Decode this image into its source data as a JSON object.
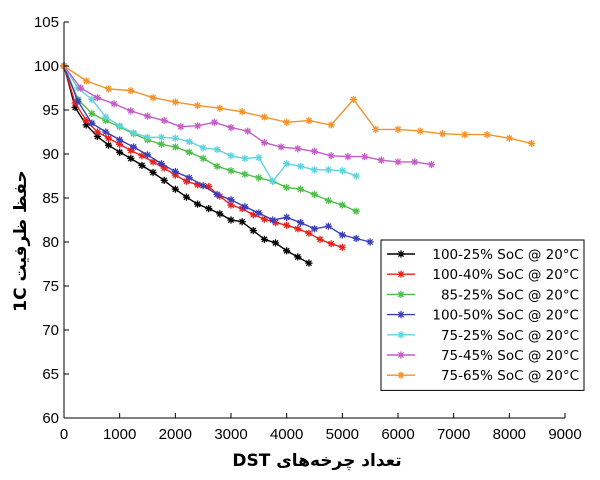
{
  "chart_data": {
    "type": "line",
    "xlabel": "تعداد چرخه‌های DST",
    "ylabel": "حفظ ظرفیت 1C",
    "xlim": [
      0,
      9000
    ],
    "ylim": [
      60,
      105
    ],
    "xticks": [
      0,
      1000,
      2000,
      3000,
      4000,
      5000,
      6000,
      7000,
      8000,
      9000
    ],
    "yticks": [
      60,
      65,
      70,
      75,
      80,
      85,
      90,
      95,
      100,
      105
    ],
    "grid": false,
    "legend_position": "bottom-right",
    "series": [
      {
        "name": "100-25% SoC @ 20°C",
        "color": "#000000",
        "marker": "asterisk",
        "x": [
          0,
          200,
          400,
          600,
          800,
          1000,
          1200,
          1400,
          1600,
          1800,
          2000,
          2200,
          2400,
          2600,
          2800,
          3000,
          3200,
          3400,
          3600,
          3800,
          4000,
          4200,
          4400
        ],
        "y": [
          100,
          95.3,
          93.3,
          92.0,
          91.0,
          90.2,
          89.5,
          88.7,
          87.9,
          87.0,
          86.0,
          85.1,
          84.3,
          83.8,
          83.2,
          82.5,
          82.3,
          81.3,
          80.3,
          79.9,
          79.0,
          78.3,
          77.6
        ]
      },
      {
        "name": "100-40% SoC @ 20°C",
        "color": "#e8231e",
        "marker": "asterisk",
        "x": [
          0,
          200,
          400,
          600,
          800,
          1000,
          1200,
          1400,
          1600,
          1800,
          2000,
          2200,
          2400,
          2600,
          2800,
          3000,
          3200,
          3400,
          3600,
          3800,
          4000,
          4200,
          4400,
          4600,
          4800,
          5000
        ],
        "y": [
          100,
          95.8,
          93.8,
          92.5,
          91.8,
          91.1,
          90.4,
          89.8,
          89.1,
          88.4,
          87.6,
          86.9,
          86.5,
          86.3,
          85.2,
          84.2,
          83.8,
          83.1,
          82.6,
          82.2,
          81.9,
          81.5,
          81.0,
          80.3,
          79.8,
          79.4
        ]
      },
      {
        "name": "85-25% SoC @ 20°C",
        "color": "#4dbf4a",
        "marker": "asterisk",
        "x": [
          0,
          250,
          500,
          750,
          1000,
          1250,
          1500,
          1750,
          2000,
          2250,
          2500,
          2750,
          3000,
          3250,
          3500,
          3750,
          4000,
          4250,
          4500,
          4750,
          5000,
          5250
        ],
        "y": [
          100,
          96.2,
          94.6,
          93.8,
          93.1,
          92.3,
          91.6,
          91.1,
          90.8,
          90.2,
          89.5,
          88.6,
          88.1,
          87.7,
          87.3,
          86.9,
          86.2,
          86.0,
          85.4,
          84.7,
          84.2,
          83.5
        ]
      },
      {
        "name": "100-50% SoC @ 20°C",
        "color": "#3a3fb8",
        "marker": "asterisk",
        "x": [
          0,
          250,
          500,
          750,
          1000,
          1250,
          1500,
          1750,
          2000,
          2250,
          2500,
          2750,
          3000,
          3250,
          3500,
          3750,
          4000,
          4250,
          4500,
          4750,
          5000,
          5250,
          5500
        ],
        "y": [
          100,
          96.0,
          93.5,
          92.5,
          91.6,
          90.8,
          89.9,
          88.9,
          88.0,
          87.3,
          86.4,
          85.4,
          84.8,
          84.0,
          83.3,
          82.5,
          82.8,
          82.2,
          81.5,
          81.8,
          80.8,
          80.4,
          80.0
        ]
      },
      {
        "name": "75-25% SoC @ 20°C",
        "color": "#5fd3e0",
        "marker": "asterisk",
        "x": [
          0,
          250,
          500,
          750,
          1000,
          1250,
          1500,
          1750,
          2000,
          2250,
          2500,
          2750,
          3000,
          3250,
          3500,
          3750,
          4000,
          4250,
          4500,
          4750,
          5000,
          5250
        ],
        "y": [
          100,
          97.5,
          96.2,
          94.2,
          93.2,
          92.4,
          91.9,
          91.9,
          91.8,
          91.4,
          90.7,
          90.5,
          89.8,
          89.5,
          89.6,
          86.9,
          88.9,
          88.6,
          88.2,
          88.2,
          88.1,
          87.5
        ]
      },
      {
        "name": "75-45% SoC @ 20°C",
        "color": "#c45ec6",
        "marker": "asterisk",
        "x": [
          0,
          300,
          600,
          900,
          1200,
          1500,
          1800,
          2100,
          2400,
          2700,
          3000,
          3300,
          3600,
          3900,
          4200,
          4500,
          4800,
          5100,
          5400,
          5700,
          6000,
          6300,
          6600
        ],
        "y": [
          100,
          97.5,
          96.4,
          95.7,
          94.9,
          94.3,
          93.8,
          93.1,
          93.2,
          93.6,
          93.0,
          92.6,
          91.3,
          90.8,
          90.6,
          90.3,
          89.8,
          89.7,
          89.7,
          89.3,
          89.1,
          89.1,
          88.8
        ]
      },
      {
        "name": "75-65% SoC @ 20°C",
        "color": "#f5922a",
        "marker": "asterisk",
        "x": [
          0,
          400,
          800,
          1200,
          1600,
          2000,
          2400,
          2800,
          3200,
          3600,
          4000,
          4400,
          4800,
          5200,
          5600,
          6000,
          6400,
          6800,
          7200,
          7600,
          8000,
          8400
        ],
        "y": [
          100,
          98.3,
          97.4,
          97.2,
          96.4,
          95.9,
          95.5,
          95.2,
          94.8,
          94.2,
          93.6,
          93.8,
          93.3,
          96.2,
          92.8,
          92.8,
          92.6,
          92.3,
          92.2,
          92.2,
          91.8,
          91.2
        ]
      }
    ]
  }
}
